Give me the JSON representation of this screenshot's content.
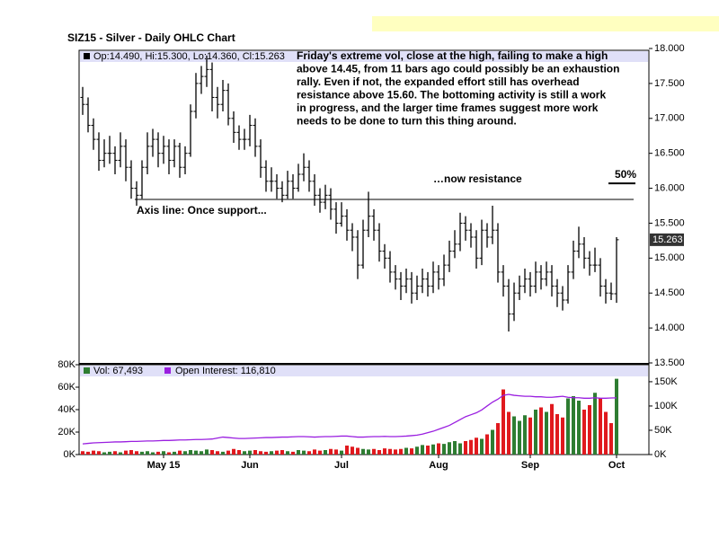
{
  "chart_data": {
    "type": "ohlc",
    "title": "SIZ15 - Silver - Daily OHLC Chart",
    "price_legend": "Op:14.490, Hi:15.300, Lo:14.360, Cl:15.263",
    "commentary": [
      "Friday's extreme vol, close at the high, failing to make a high",
      "above 14.45, from 11 bars ago could possibly be an exhaustion",
      "rally.   Even if not, the expanded effort still has overhead",
      "resistance above 15.60.  The bottoming activity is still a work",
      "in progress, and the larger time frames suggest more work",
      "needs to be done to turn this thing around."
    ],
    "resistance_note": "…now resistance",
    "support_note": "Axis line: Once support...",
    "support_resistance_level": 15.84,
    "fifty_percent_label": "50%",
    "fifty_percent_level": 16.07,
    "categories": [
      null,
      null,
      null,
      null,
      null,
      null,
      null,
      null,
      null,
      null,
      null,
      null,
      null,
      null,
      null,
      "May 15",
      null,
      null,
      null,
      null,
      null,
      null,
      null,
      null,
      null,
      null,
      null,
      null,
      null,
      null,
      null,
      "Jun",
      null,
      null,
      null,
      null,
      null,
      null,
      null,
      null,
      null,
      null,
      null,
      null,
      null,
      null,
      null,
      null,
      "Jul",
      null,
      null,
      null,
      null,
      null,
      null,
      null,
      null,
      null,
      null,
      null,
      null,
      null,
      null,
      null,
      null,
      null,
      "Aug",
      null,
      null,
      null,
      null,
      null,
      null,
      null,
      null,
      null,
      null,
      null,
      null,
      null,
      null,
      null,
      null,
      "Sep",
      null,
      null,
      null,
      null,
      null,
      null,
      null,
      null,
      null,
      null,
      null,
      null,
      null,
      null,
      null,
      "Oct"
    ],
    "ohlc": [
      [
        17.3,
        17.45,
        17.05,
        17.2
      ],
      [
        17.2,
        17.3,
        16.8,
        16.9
      ],
      [
        16.9,
        17.0,
        16.55,
        16.7
      ],
      [
        16.7,
        16.8,
        16.25,
        16.4
      ],
      [
        16.4,
        16.7,
        16.3,
        16.5
      ],
      [
        16.5,
        16.75,
        16.35,
        16.5
      ],
      [
        16.5,
        16.6,
        16.2,
        16.4
      ],
      [
        16.4,
        16.8,
        16.3,
        16.6
      ],
      [
        16.6,
        16.7,
        16.1,
        16.3
      ],
      [
        16.3,
        16.4,
        15.85,
        16.0
      ],
      [
        16.0,
        16.1,
        15.75,
        15.9
      ],
      [
        15.9,
        16.4,
        15.85,
        16.3
      ],
      [
        16.3,
        16.8,
        16.2,
        16.6
      ],
      [
        16.6,
        16.85,
        16.45,
        16.7
      ],
      [
        16.7,
        16.8,
        16.3,
        16.5
      ],
      [
        16.5,
        16.75,
        16.35,
        16.6
      ],
      [
        16.6,
        16.7,
        16.2,
        16.4
      ],
      [
        16.4,
        16.7,
        16.3,
        16.6
      ],
      [
        16.6,
        16.65,
        16.15,
        16.3
      ],
      [
        16.3,
        16.6,
        16.2,
        16.5
      ],
      [
        16.5,
        17.2,
        16.45,
        17.1
      ],
      [
        17.1,
        17.65,
        17.0,
        17.5
      ],
      [
        17.5,
        17.75,
        17.35,
        17.6
      ],
      [
        17.6,
        17.9,
        17.45,
        17.7
      ],
      [
        17.7,
        17.8,
        17.1,
        17.3
      ],
      [
        17.3,
        17.45,
        17.0,
        17.2
      ],
      [
        17.2,
        17.55,
        17.1,
        17.4
      ],
      [
        17.4,
        17.5,
        16.9,
        17.0
      ],
      [
        17.0,
        17.1,
        16.65,
        16.8
      ],
      [
        16.8,
        16.9,
        16.55,
        16.7
      ],
      [
        16.7,
        16.85,
        16.55,
        16.7
      ],
      [
        16.7,
        17.05,
        16.6,
        16.9
      ],
      [
        16.9,
        17.0,
        16.45,
        16.6
      ],
      [
        16.6,
        16.7,
        16.15,
        16.3
      ],
      [
        16.3,
        16.4,
        15.95,
        16.1
      ],
      [
        16.1,
        16.3,
        15.95,
        16.1
      ],
      [
        16.1,
        16.2,
        15.85,
        16.0
      ],
      [
        16.0,
        16.1,
        15.8,
        15.9
      ],
      [
        15.9,
        16.25,
        15.85,
        16.1
      ],
      [
        16.1,
        16.2,
        15.85,
        16.0
      ],
      [
        16.0,
        16.35,
        15.95,
        16.2
      ],
      [
        16.2,
        16.5,
        16.1,
        16.3
      ],
      [
        16.3,
        16.4,
        15.95,
        16.1
      ],
      [
        16.1,
        16.2,
        15.75,
        15.9
      ],
      [
        15.9,
        16.0,
        15.65,
        15.8
      ],
      [
        15.8,
        16.05,
        15.7,
        15.9
      ],
      [
        15.9,
        16.0,
        15.55,
        15.7
      ],
      [
        15.7,
        15.8,
        15.35,
        15.5
      ],
      [
        15.5,
        15.8,
        15.45,
        15.6
      ],
      [
        15.6,
        15.7,
        15.25,
        15.4
      ],
      [
        15.4,
        15.5,
        15.1,
        15.3
      ],
      [
        15.3,
        15.4,
        14.7,
        14.9
      ],
      [
        14.9,
        15.55,
        14.85,
        15.4
      ],
      [
        15.4,
        15.95,
        15.3,
        15.6
      ],
      [
        15.6,
        15.7,
        15.25,
        15.4
      ],
      [
        15.4,
        15.5,
        14.95,
        15.1
      ],
      [
        15.1,
        15.2,
        14.85,
        15.0
      ],
      [
        15.0,
        15.1,
        14.65,
        14.8
      ],
      [
        14.8,
        14.9,
        14.55,
        14.7
      ],
      [
        14.7,
        14.8,
        14.4,
        14.6
      ],
      [
        14.6,
        14.85,
        14.5,
        14.7
      ],
      [
        14.7,
        14.8,
        14.35,
        14.5
      ],
      [
        14.5,
        14.75,
        14.4,
        14.6
      ],
      [
        14.6,
        14.85,
        14.5,
        14.7
      ],
      [
        14.7,
        14.8,
        14.45,
        14.6
      ],
      [
        14.6,
        14.95,
        14.5,
        14.8
      ],
      [
        14.8,
        14.9,
        14.55,
        14.7
      ],
      [
        14.7,
        15.05,
        14.6,
        14.9
      ],
      [
        14.9,
        15.25,
        14.8,
        15.1
      ],
      [
        15.1,
        15.4,
        15.0,
        15.2
      ],
      [
        15.2,
        15.65,
        15.1,
        15.5
      ],
      [
        15.5,
        15.6,
        15.25,
        15.4
      ],
      [
        15.4,
        15.5,
        15.15,
        15.3
      ],
      [
        15.3,
        15.4,
        14.85,
        15.0
      ],
      [
        15.0,
        15.55,
        14.9,
        15.4
      ],
      [
        15.4,
        15.5,
        15.15,
        15.3
      ],
      [
        15.3,
        15.75,
        15.2,
        15.4
      ],
      [
        15.4,
        15.5,
        14.65,
        14.8
      ],
      [
        14.8,
        14.9,
        14.45,
        14.6
      ],
      [
        14.6,
        14.7,
        13.95,
        14.2
      ],
      [
        14.2,
        14.65,
        14.1,
        14.5
      ],
      [
        14.5,
        14.75,
        14.4,
        14.6
      ],
      [
        14.6,
        14.85,
        14.5,
        14.7
      ],
      [
        14.7,
        14.8,
        14.45,
        14.6
      ],
      [
        14.6,
        14.95,
        14.5,
        14.8
      ],
      [
        14.8,
        14.9,
        14.55,
        14.7
      ],
      [
        14.7,
        14.95,
        14.6,
        14.8
      ],
      [
        14.8,
        14.9,
        14.45,
        14.6
      ],
      [
        14.6,
        14.7,
        14.3,
        14.5
      ],
      [
        14.5,
        14.6,
        14.25,
        14.4
      ],
      [
        14.4,
        14.9,
        14.35,
        14.8
      ],
      [
        14.8,
        15.25,
        14.7,
        15.1
      ],
      [
        15.1,
        15.45,
        15.0,
        15.2
      ],
      [
        15.2,
        15.3,
        14.85,
        15.0
      ],
      [
        15.0,
        15.1,
        14.75,
        14.9
      ],
      [
        14.9,
        15.15,
        14.8,
        14.9
      ],
      [
        14.9,
        15.0,
        14.45,
        14.6
      ],
      [
        14.6,
        14.7,
        14.35,
        14.5
      ],
      [
        14.5,
        14.65,
        14.4,
        14.49
      ],
      [
        14.49,
        15.3,
        14.36,
        15.263
      ]
    ],
    "ylim": [
      13.5,
      18.0
    ],
    "yticks": [
      {
        "value": 13.5,
        "label": "13.500"
      },
      {
        "value": 14.0,
        "label": "14.000"
      },
      {
        "value": 14.5,
        "label": "14.500"
      },
      {
        "value": 15.0,
        "label": "15.000"
      },
      {
        "value": 15.5,
        "label": "15.500"
      },
      {
        "value": 16.0,
        "label": "16.000"
      },
      {
        "value": 16.5,
        "label": "16.500"
      },
      {
        "value": 17.0,
        "label": "17.000"
      },
      {
        "value": 17.5,
        "label": "17.500"
      },
      {
        "value": 18.0,
        "label": "18.000"
      }
    ],
    "bar_color": "#000000",
    "volume": {
      "legend": "Vol: 67,493",
      "up_color": "#2e7d32",
      "down_color": "#e0191e",
      "values": [
        3000,
        2500,
        3500,
        3000,
        2000,
        2500,
        3000,
        2000,
        3500,
        4000,
        3000,
        2500,
        3000,
        2000,
        2500,
        3000,
        2000,
        2500,
        3500,
        3000,
        4000,
        3500,
        3000,
        4500,
        4000,
        3000,
        2500,
        3500,
        5000,
        4000,
        3000,
        3500,
        4000,
        3000,
        2500,
        3000,
        3500,
        4000,
        3000,
        2500,
        4000,
        3500,
        3000,
        4500,
        3500,
        4000,
        5000,
        4500,
        3500,
        8000,
        7000,
        6000,
        5000,
        4500,
        5000,
        4000,
        5500,
        5000,
        4500,
        5000,
        6000,
        5500,
        7000,
        8500,
        8000,
        9000,
        10000,
        9500,
        11000,
        12000,
        10000,
        12000,
        13000,
        15000,
        14000,
        18000,
        22000,
        28000,
        58000,
        38000,
        34000,
        30000,
        35000,
        33000,
        40000,
        42000,
        38000,
        45000,
        36000,
        33000,
        50000,
        52000,
        48000,
        40000,
        44000,
        55000,
        50000,
        38000,
        28000,
        67493
      ],
      "ylim": [
        0,
        80000
      ],
      "yticks": [
        {
          "value": 0,
          "label": "0K"
        },
        {
          "value": 20000,
          "label": "20K"
        },
        {
          "value": 40000,
          "label": "40K"
        },
        {
          "value": 60000,
          "label": "60K"
        },
        {
          "value": 80000,
          "label": "80K"
        }
      ]
    },
    "open_interest": {
      "legend": "Open Interest: 116,810",
      "color": "#9a1fe0",
      "axis": "y2",
      "values": [
        22000,
        23000,
        24000,
        24500,
        25000,
        25500,
        26000,
        26000,
        26500,
        27000,
        27000,
        27500,
        28000,
        28000,
        28500,
        29000,
        29000,
        29500,
        30000,
        30000,
        30500,
        31000,
        31000,
        31500,
        32000,
        34000,
        36000,
        35000,
        34000,
        33000,
        33000,
        33500,
        34000,
        34500,
        35000,
        35000,
        35500,
        36000,
        36000,
        36500,
        37000,
        37000,
        36500,
        36000,
        36500,
        37000,
        37000,
        37500,
        38000,
        38000,
        37000,
        36000,
        36000,
        36500,
        37000,
        37000,
        37500,
        37000,
        37000,
        37500,
        38000,
        39000,
        40000,
        42000,
        45000,
        48000,
        52000,
        56000,
        60000,
        66000,
        72000,
        78000,
        82000,
        86000,
        92000,
        100000,
        108000,
        114000,
        122000,
        124000,
        122000,
        121000,
        120000,
        120000,
        119000,
        119000,
        118000,
        118000,
        119000,
        120000,
        118000,
        117000,
        117000,
        116000,
        116000,
        117000,
        116000,
        116000,
        116500,
        116810
      ],
      "y2lim": [
        0,
        185000
      ],
      "y2ticks": [
        {
          "value": 0,
          "label": "0K"
        },
        {
          "value": 50000,
          "label": "50K"
        },
        {
          "value": 100000,
          "label": "100K"
        },
        {
          "value": 150000,
          "label": "150K"
        }
      ]
    }
  }
}
